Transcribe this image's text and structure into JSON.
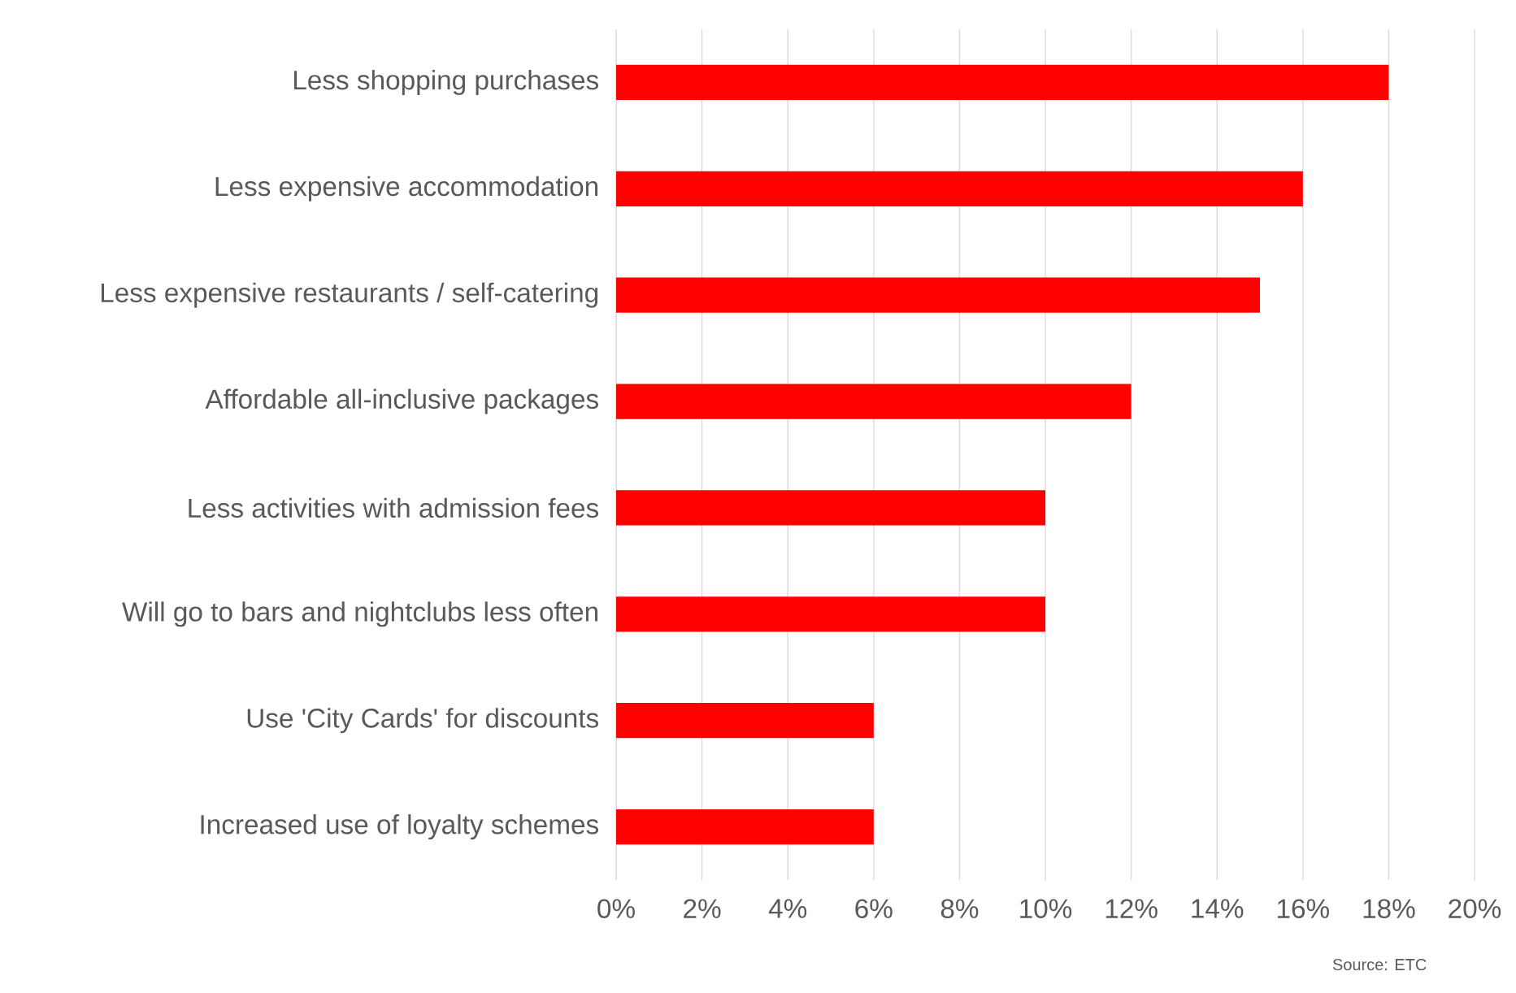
{
  "chart_data": {
    "type": "bar",
    "orientation": "horizontal",
    "categories": [
      "Less shopping purchases",
      "Less expensive accommodation",
      "Less expensive restaurants / self-catering",
      "Affordable all-inclusive packages",
      "Less activities with admission fees",
      "Will go to bars and nightclubs less often",
      "Use 'City Cards' for discounts",
      "Increased use of loyalty schemes"
    ],
    "values": [
      18,
      16,
      15,
      12,
      10,
      10,
      6,
      6
    ],
    "color": "#ff0000",
    "xlim": [
      0,
      20
    ],
    "xticks": [
      {
        "value": 0,
        "label": "0%"
      },
      {
        "value": 2,
        "label": "2%"
      },
      {
        "value": 4,
        "label": "4%"
      },
      {
        "value": 6,
        "label": "6%"
      },
      {
        "value": 8,
        "label": "8%"
      },
      {
        "value": 10,
        "label": "10%"
      },
      {
        "value": 12,
        "label": "12%"
      },
      {
        "value": 14,
        "label": "14%"
      },
      {
        "value": 16,
        "label": "16%"
      },
      {
        "value": 18,
        "label": "18%"
      },
      {
        "value": 20,
        "label": "20%"
      }
    ],
    "grid": "x",
    "annotations": [
      "Source: ETC"
    ]
  }
}
